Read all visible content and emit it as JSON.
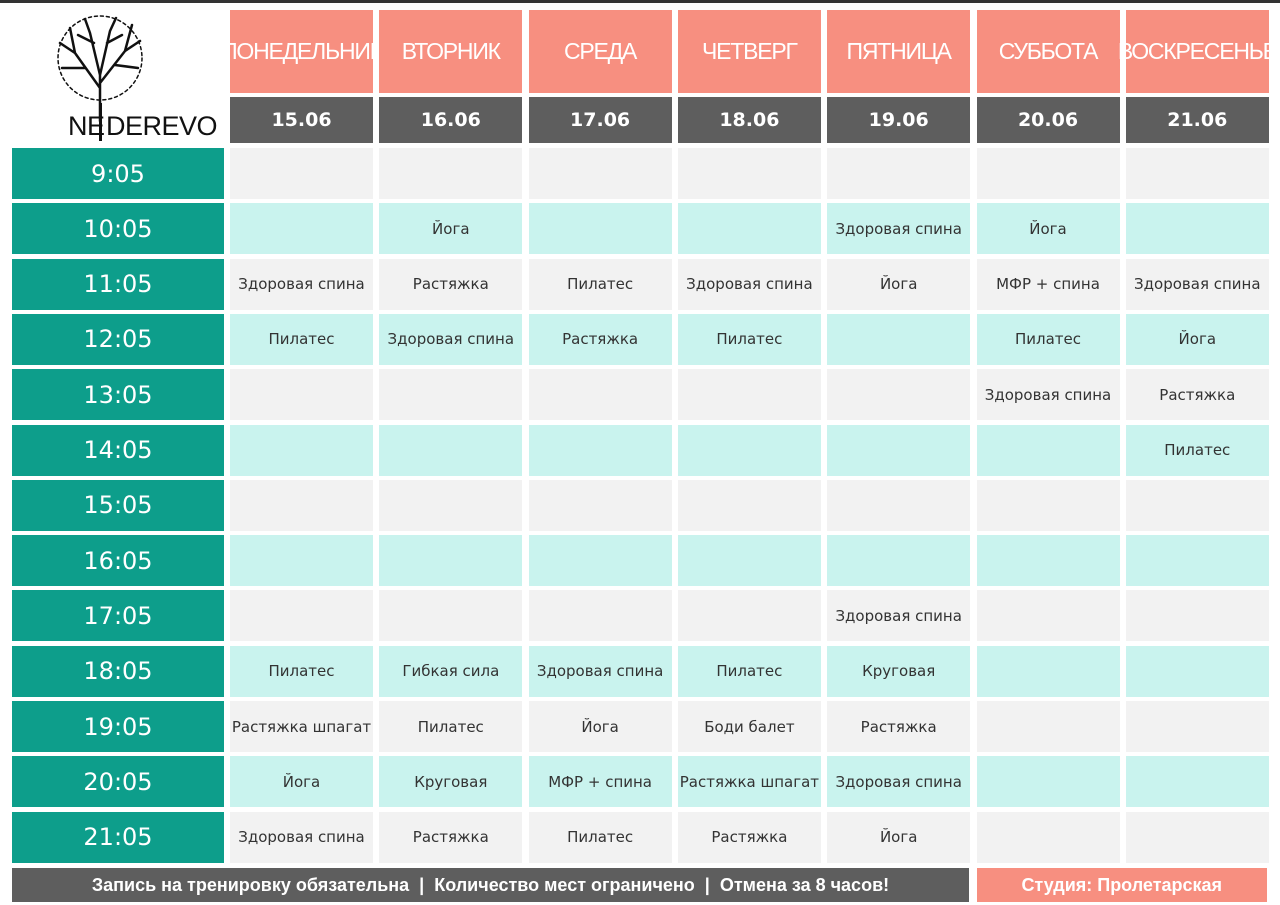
{
  "header": {
    "logo_left": "NE",
    "logo_right": "DEREVO",
    "days": [
      {
        "name": "ПОНЕДЕЛЬНИК",
        "date": "15.06"
      },
      {
        "name": "ВТОРНИК",
        "date": "16.06"
      },
      {
        "name": "СРЕДА",
        "date": "17.06"
      },
      {
        "name": "ЧЕТВЕРГ",
        "date": "18.06"
      },
      {
        "name": "ПЯТНИЦА",
        "date": "19.06"
      },
      {
        "name": "СУББОТА",
        "date": "20.06"
      },
      {
        "name": "ВОСКРЕСЕНЬЕ",
        "date": "21.06"
      }
    ]
  },
  "schedule": [
    {
      "time": "9:05",
      "cells": [
        null,
        null,
        null,
        null,
        null,
        null,
        null
      ]
    },
    {
      "time": "10:05",
      "cells": [
        null,
        "Йога",
        null,
        null,
        "Здоровая спина",
        "Йога",
        null
      ]
    },
    {
      "time": "11:05",
      "cells": [
        "Здоровая спина",
        "Растяжка",
        "Пилатес",
        "Здоровая спина",
        "Йога",
        "МФР + спина",
        "Здоровая спина"
      ]
    },
    {
      "time": "12:05",
      "cells": [
        "Пилатес",
        "Здоровая спина",
        "Растяжка",
        "Пилатес",
        null,
        "Пилатес",
        "Йога"
      ]
    },
    {
      "time": "13:05",
      "cells": [
        null,
        null,
        null,
        null,
        null,
        "Здоровая спина",
        "Растяжка"
      ]
    },
    {
      "time": "14:05",
      "cells": [
        null,
        null,
        null,
        null,
        null,
        null,
        "Пилатес"
      ]
    },
    {
      "time": "15:05",
      "cells": [
        null,
        null,
        null,
        null,
        null,
        null,
        null
      ]
    },
    {
      "time": "16:05",
      "cells": [
        null,
        null,
        null,
        null,
        null,
        null,
        null
      ]
    },
    {
      "time": "17:05",
      "cells": [
        null,
        null,
        null,
        null,
        "Здоровая спина",
        null,
        null
      ]
    },
    {
      "time": "18:05",
      "cells": [
        "Пилатес",
        "Гибкая сила",
        "Здоровая спина",
        "Пилатес",
        "Круговая",
        null,
        null
      ]
    },
    {
      "time": "19:05",
      "cells": [
        "Растяжка шпагат",
        "Пилатес",
        "Йога",
        "Боди балет",
        "Растяжка",
        null,
        null
      ]
    },
    {
      "time": "20:05",
      "cells": [
        "Йога",
        "Круговая",
        "МФР + спина",
        "Растяжка шпагат",
        "Здоровая спина",
        null,
        null
      ]
    },
    {
      "time": "21:05",
      "cells": [
        "Здоровая спина",
        "Растяжка",
        "Пилатес",
        "Растяжка",
        "Йога",
        null,
        null
      ]
    }
  ],
  "footer": {
    "notice": "Запись на тренировку обязательна  |  Количество мест ограничено  |  Отмена за 8 часов!",
    "studio": "Студия: Пролетарская"
  }
}
